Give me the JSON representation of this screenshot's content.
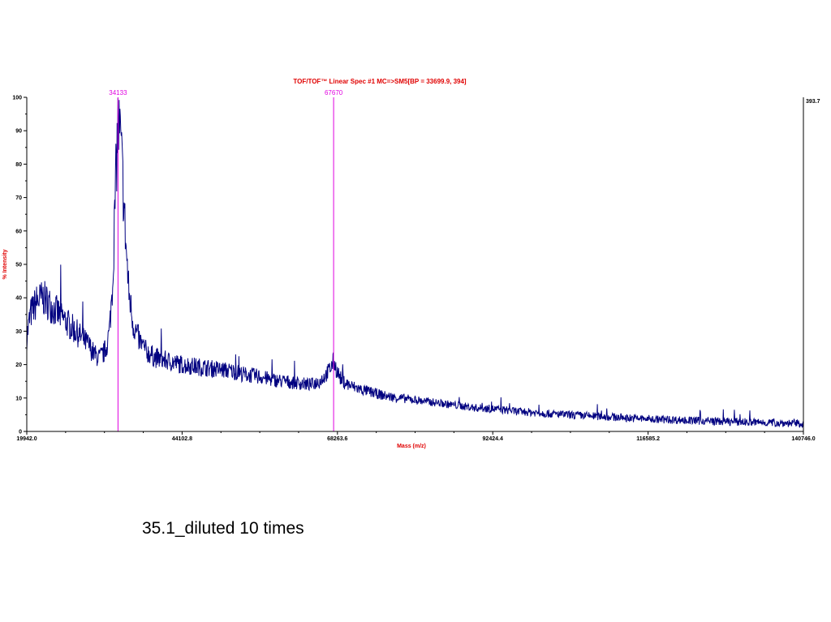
{
  "caption": "35.1_diluted 10 times",
  "colors": {
    "spectrum": "#000080",
    "marker": "#e000e0",
    "title": "#e00000",
    "axes": "#000000"
  },
  "chart_data": {
    "type": "line",
    "title": "TOF/TOF™ Linear Spec #1 MC=>SM5[BP = 33699.9, 394]",
    "xlabel": "Mass (m/z)",
    "ylabel": "% Intensity",
    "max_intensity_label": "393.7",
    "xlim": [
      19942.0,
      140746.0
    ],
    "ylim": [
      0,
      100
    ],
    "x_ticks": [
      "19942.0",
      "44102.8",
      "68263.6",
      "92424.4",
      "116585.2",
      "140746.0"
    ],
    "x_tick_values": [
      19942.0,
      44102.8,
      68263.6,
      92424.4,
      116585.2,
      140746.0
    ],
    "y_ticks": [
      "0",
      "10",
      "20",
      "30",
      "40",
      "50",
      "60",
      "70",
      "80",
      "90",
      "100"
    ],
    "y_tick_values": [
      0,
      10,
      20,
      30,
      40,
      50,
      60,
      70,
      80,
      90,
      100
    ],
    "peak_markers": [
      {
        "label": "34133",
        "x": 34133
      },
      {
        "label": "67670",
        "x": 67670
      }
    ],
    "series": [
      {
        "x": [
          19942,
          20500,
          21500,
          22500,
          23500,
          24500,
          25500,
          26500,
          27500,
          28500,
          29500,
          30500,
          31200,
          31800,
          32300,
          32800,
          33300,
          33700,
          34100,
          34500,
          34900,
          35300,
          35800,
          36500,
          37500,
          38500,
          40000,
          42000,
          44000,
          46000,
          48000,
          50000,
          52000,
          54000,
          56000,
          58000,
          60000,
          62000,
          64000,
          65500,
          66500,
          67200,
          67670,
          68200,
          69000,
          70500,
          72000,
          74000,
          76000,
          78000,
          80000,
          82000,
          84000,
          86000,
          88000,
          90000,
          92000,
          94000,
          96000,
          98000,
          100000,
          102000,
          104000,
          106000,
          108000,
          110000,
          112000,
          114000,
          116000,
          118000,
          120000,
          122000,
          124000,
          126000,
          128000,
          130000,
          132000,
          134000,
          136000,
          138000,
          140000,
          140746
        ],
        "y": [
          28,
          35,
          39,
          40,
          38,
          36,
          34,
          32,
          30,
          28,
          26,
          23,
          22,
          23,
          25,
          30,
          45,
          70,
          92,
          88,
          74,
          58,
          42,
          32,
          27,
          24,
          22,
          21,
          20,
          19.5,
          19,
          18.5,
          18,
          17,
          16.5,
          15.5,
          15,
          14.5,
          14,
          15,
          17,
          19,
          21,
          18,
          15,
          13.5,
          12.5,
          11.5,
          10.5,
          10,
          9.5,
          9,
          8.5,
          8,
          7.5,
          7,
          6.8,
          6.5,
          6,
          5.8,
          5.5,
          5.2,
          5,
          4.8,
          4.6,
          4.4,
          4.2,
          4,
          3.8,
          3.6,
          3.5,
          3.4,
          3.2,
          3.1,
          3,
          2.9,
          2.8,
          2.7,
          2.6,
          2.5,
          2.4,
          2.3
        ]
      }
    ]
  }
}
